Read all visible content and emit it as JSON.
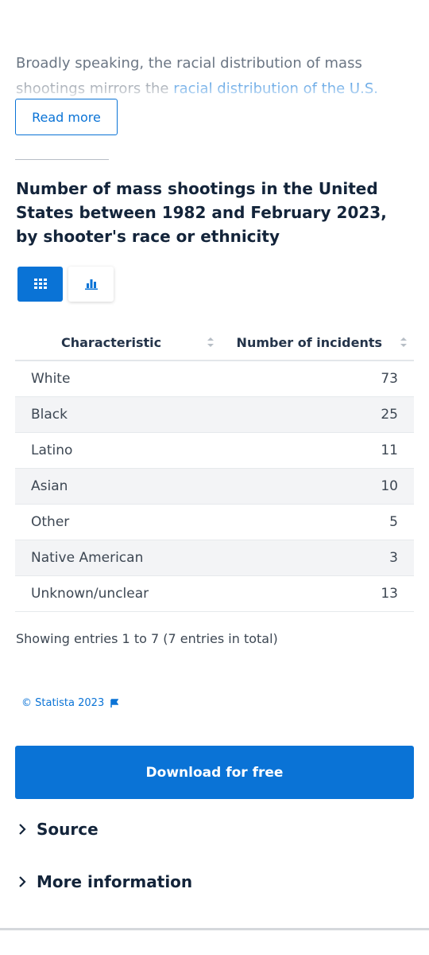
{
  "intro": {
    "text": "Broadly speaking, the racial distribution of mass shootings mirrors the",
    "link": "racial distribution of the U.S."
  },
  "read_more": "Read more",
  "title": "Number of mass shootings in the United States between 1982 and February 2023, by shooter's race or ethnicity",
  "table": {
    "headers": [
      "Characteristic",
      "Number of incidents"
    ],
    "rows": [
      [
        "White",
        73
      ],
      [
        "Black",
        25
      ],
      [
        "Latino",
        11
      ],
      [
        "Asian",
        10
      ],
      [
        "Other",
        5
      ],
      [
        "Native American",
        3
      ],
      [
        "Unknown/unclear",
        13
      ]
    ]
  },
  "entries_info": "Showing entries 1 to 7 (7 entries in total)",
  "copyright": "© Statista 2023",
  "download_button": "Download for free",
  "sections": [
    "Source",
    "More information"
  ]
}
